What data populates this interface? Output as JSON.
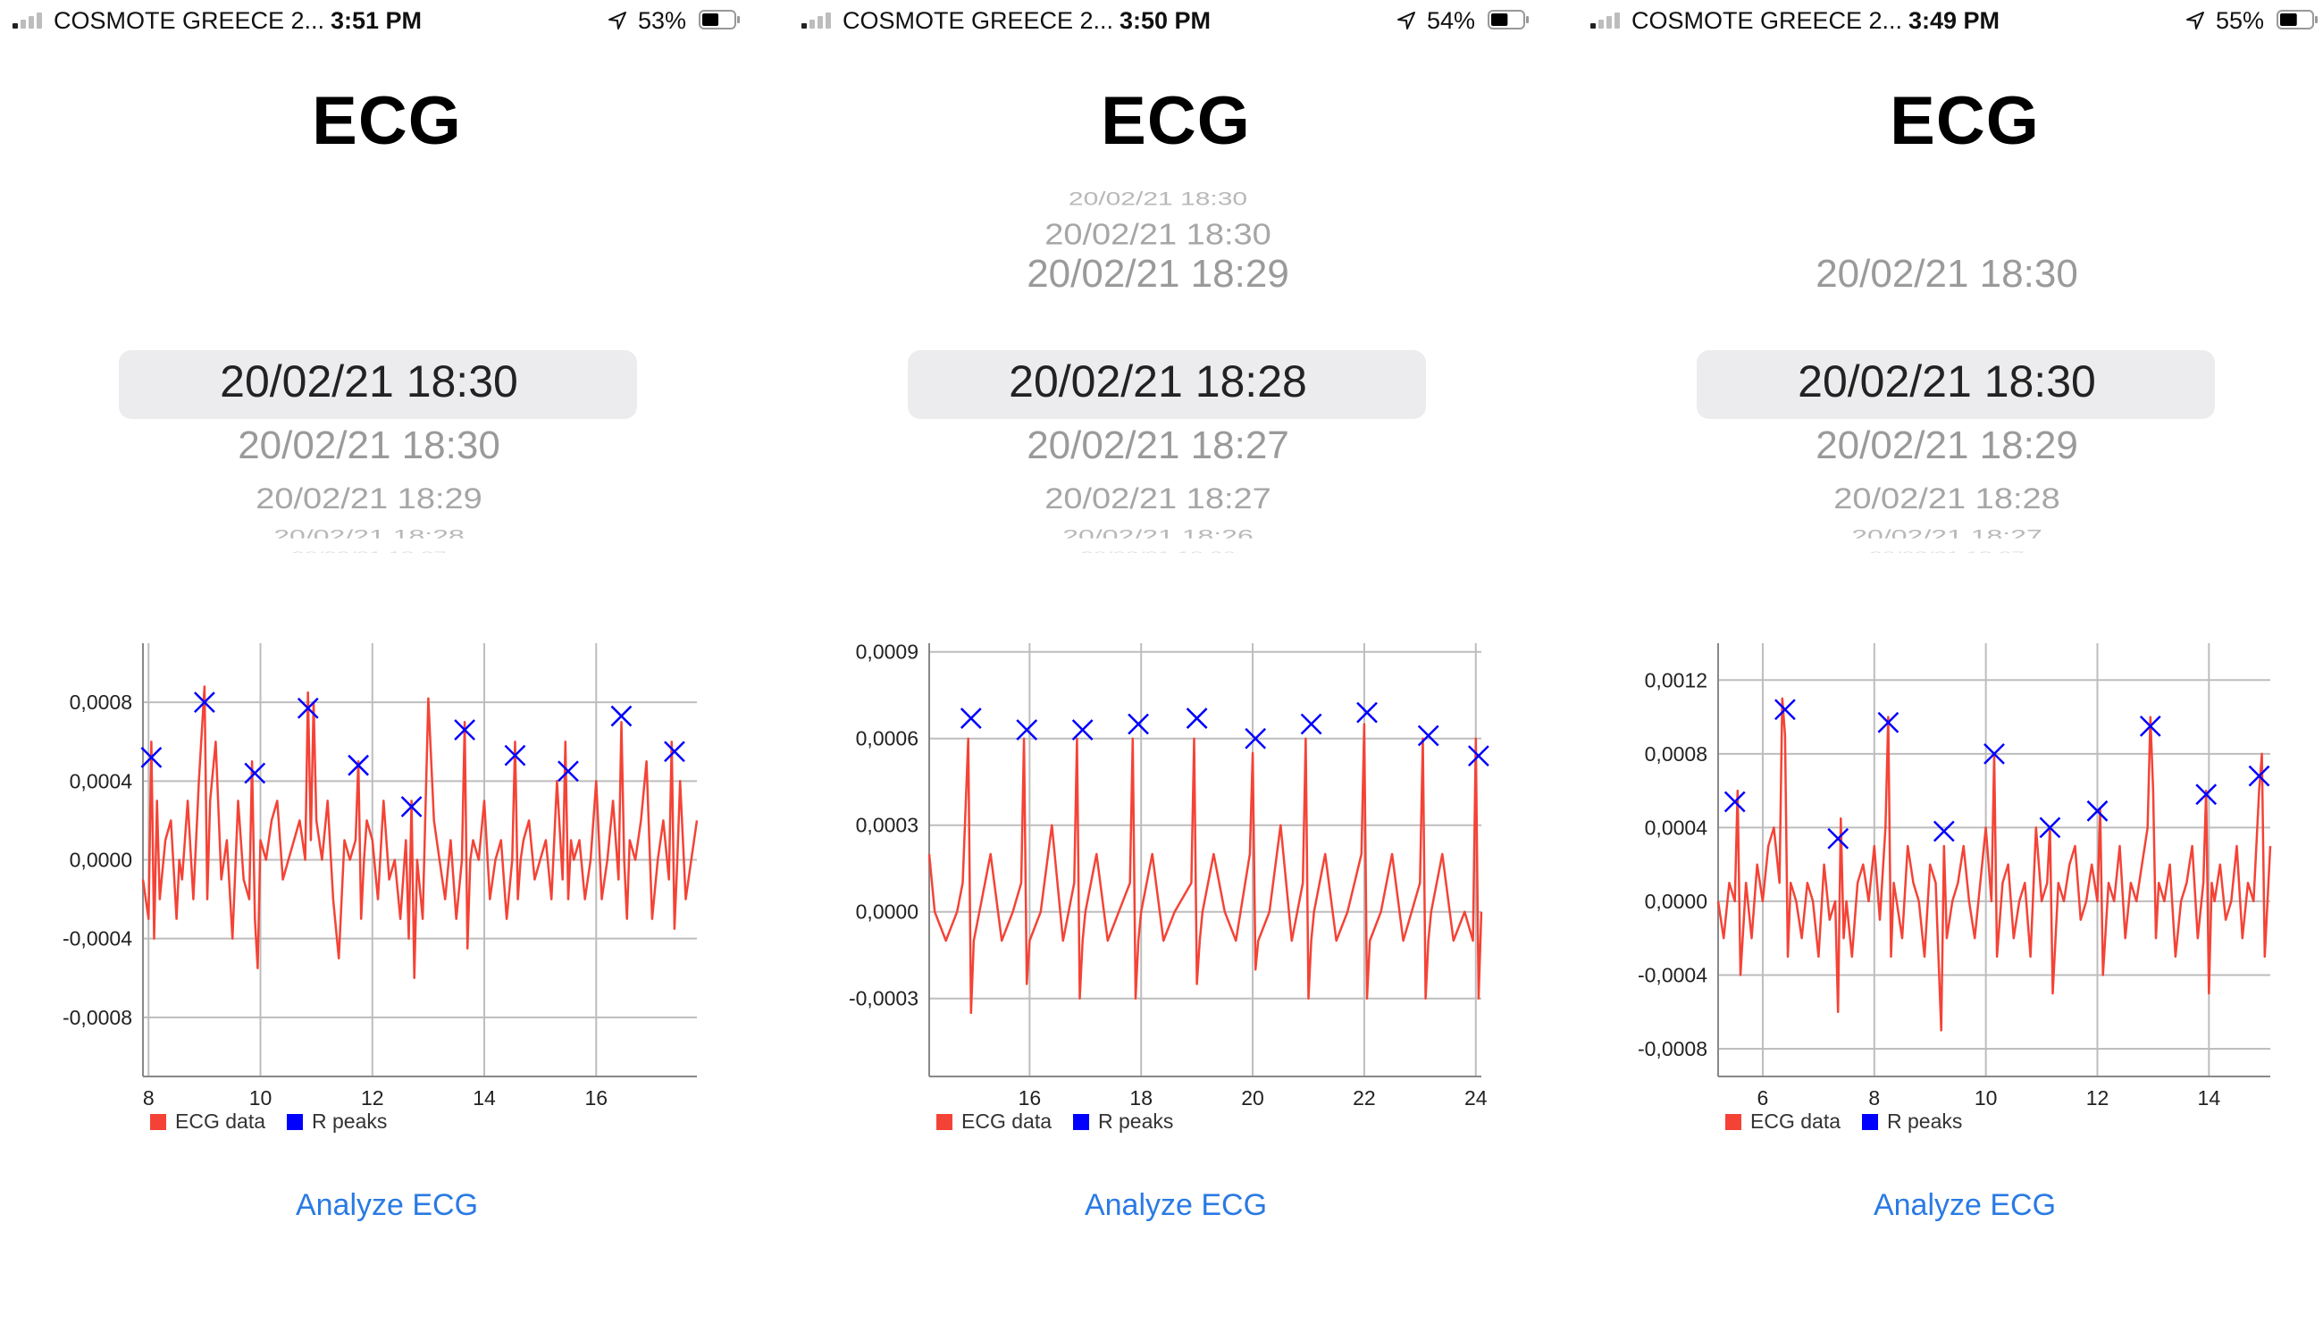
{
  "screens": [
    {
      "status": {
        "carrier": "COSMOTE GREECE 2...",
        "time": "3:51 PM",
        "battery": "53%",
        "battery_level": 0.53
      },
      "title": "ECG",
      "picker": {
        "above": [
          "",
          ""
        ],
        "selected": "20/02/21 18:30",
        "below": [
          "20/02/21 18:30",
          "20/02/21 18:29",
          "20/02/21 18:28",
          "20/02/21 18:27"
        ]
      },
      "analyze_label": "Analyze ECG",
      "chart_data": {
        "type": "line",
        "xlim": [
          7.9,
          17.8
        ],
        "ylim": [
          -0.0011,
          0.0011
        ],
        "x_ticks": [
          8,
          10,
          12,
          14,
          16
        ],
        "x_tick_labels": [
          "8",
          "10",
          "12",
          "14",
          "16"
        ],
        "y_ticks": [
          -0.0008,
          -0.0004,
          0.0,
          0.0004,
          0.0008
        ],
        "y_tick_labels": [
          "-0,0008",
          "-0,0004",
          "0,0000",
          "0,0004",
          "0,0008"
        ],
        "series": [
          {
            "name": "ECG data",
            "color": "#f44336",
            "style": "line",
            "x": [
              7.9,
              8.0,
              8.05,
              8.1,
              8.15,
              8.2,
              8.3,
              8.4,
              8.5,
              8.55,
              8.6,
              8.7,
              8.8,
              8.9,
              9.0,
              9.05,
              9.1,
              9.2,
              9.3,
              9.4,
              9.5,
              9.6,
              9.7,
              9.8,
              9.85,
              9.9,
              9.95,
              10.0,
              10.1,
              10.2,
              10.3,
              10.4,
              10.5,
              10.6,
              10.7,
              10.8,
              10.85,
              10.9,
              10.95,
              11.0,
              11.1,
              11.2,
              11.3,
              11.4,
              11.5,
              11.6,
              11.7,
              11.75,
              11.8,
              11.85,
              11.9,
              12.0,
              12.1,
              12.2,
              12.3,
              12.4,
              12.5,
              12.6,
              12.65,
              12.7,
              12.75,
              12.8,
              12.9,
              13.0,
              13.1,
              13.2,
              13.3,
              13.4,
              13.5,
              13.6,
              13.65,
              13.7,
              13.75,
              13.8,
              13.9,
              14.0,
              14.1,
              14.2,
              14.3,
              14.4,
              14.5,
              14.55,
              14.6,
              14.65,
              14.7,
              14.8,
              14.9,
              15.0,
              15.1,
              15.2,
              15.3,
              15.4,
              15.45,
              15.5,
              15.55,
              15.6,
              15.7,
              15.8,
              15.9,
              16.0,
              16.1,
              16.2,
              16.3,
              16.4,
              16.45,
              16.5,
              16.55,
              16.6,
              16.7,
              16.8,
              16.9,
              17.0,
              17.1,
              17.2,
              17.3,
              17.35,
              17.4,
              17.45,
              17.5,
              17.6,
              17.7,
              17.8
            ],
            "y": [
              -0.0001,
              -0.0003,
              0.0006,
              -0.0004,
              0.0003,
              -0.0002,
              0.0001,
              0.0002,
              -0.0003,
              0.0,
              -0.0001,
              0.0003,
              -0.0002,
              0.0004,
              0.00088,
              -0.0002,
              0.0003,
              0.0006,
              -0.0001,
              0.0001,
              -0.0004,
              0.0003,
              -0.0001,
              -0.0002,
              0.0005,
              -0.0003,
              -0.00055,
              0.0001,
              0.0,
              0.0002,
              0.0003,
              -0.0001,
              0.0,
              0.0001,
              0.0002,
              0.0,
              0.00085,
              0.0001,
              0.0008,
              0.0002,
              0.0,
              0.0003,
              -0.0002,
              -0.0005,
              0.0001,
              0.0,
              0.0001,
              0.0005,
              -0.0003,
              0.0,
              0.0002,
              0.0001,
              -0.0002,
              0.0003,
              -0.0001,
              0.0,
              -0.0003,
              0.0001,
              -0.0004,
              0.0003,
              -0.0006,
              0.0,
              -0.0003,
              0.00082,
              0.0002,
              0.0,
              -0.0002,
              0.0001,
              -0.0003,
              0.0,
              0.0007,
              -0.00045,
              0.0,
              0.0001,
              0.0,
              0.0003,
              -0.0002,
              0.0,
              0.0001,
              -0.0003,
              0.0,
              0.0006,
              -0.0002,
              0.0,
              0.0001,
              0.0002,
              -0.0001,
              0.0,
              0.0001,
              -0.0002,
              0.0004,
              -0.0001,
              0.0006,
              -0.0002,
              0.0001,
              0.0,
              0.0001,
              -0.0002,
              0.0,
              0.0004,
              -0.0002,
              0.0,
              0.0003,
              -0.0001,
              0.0007,
              0.0,
              -0.0003,
              0.0001,
              0.0,
              0.0002,
              0.0005,
              -0.0003,
              0.0,
              0.0002,
              -0.0001,
              0.0006,
              -0.00035,
              0.0,
              0.0004,
              -0.0002,
              0.0,
              0.0002
            ]
          },
          {
            "name": "R peaks",
            "color": "#0000ff",
            "style": "x",
            "x": [
              8.05,
              9.0,
              9.9,
              10.85,
              11.75,
              12.7,
              13.65,
              14.55,
              15.5,
              16.45,
              17.4
            ],
            "y": [
              0.00052,
              0.0008,
              0.00044,
              0.00077,
              0.00048,
              0.00027,
              0.00066,
              0.00053,
              0.00045,
              0.00073,
              0.00055
            ]
          }
        ]
      }
    },
    {
      "status": {
        "carrier": "COSMOTE GREECE 2...",
        "time": "3:50 PM",
        "battery": "54%",
        "battery_level": 0.54
      },
      "title": "ECG",
      "picker": {
        "above": [
          "20/02/21 18:30",
          "20/02/21 18:30",
          "20/02/21 18:29"
        ],
        "selected": "20/02/21 18:28",
        "below": [
          "20/02/21 18:27",
          "20/02/21 18:27",
          "20/02/21 18:26",
          "20/02/21 18:26"
        ]
      },
      "analyze_label": "Analyze ECG",
      "chart_data": {
        "type": "line",
        "xlim": [
          14.2,
          24.1
        ],
        "ylim": [
          -0.00057,
          0.00093
        ],
        "x_ticks": [
          16,
          18,
          20,
          22,
          24
        ],
        "x_tick_labels": [
          "16",
          "18",
          "20",
          "22",
          "24"
        ],
        "y_ticks": [
          -0.0003,
          0.0,
          0.0003,
          0.0006,
          0.0009
        ],
        "y_tick_labels": [
          "-0,0003",
          "0,0000",
          "0,0003",
          "0,0006",
          "0,0009"
        ],
        "series": [
          {
            "name": "ECG data",
            "color": "#f44336",
            "style": "line",
            "x": [
              14.2,
              14.3,
              14.5,
              14.7,
              14.8,
              14.9,
              14.95,
              15.0,
              15.1,
              15.3,
              15.5,
              15.7,
              15.85,
              15.9,
              15.95,
              16.0,
              16.2,
              16.4,
              16.6,
              16.8,
              16.85,
              16.9,
              16.95,
              17.0,
              17.2,
              17.4,
              17.6,
              17.8,
              17.85,
              17.9,
              17.95,
              18.0,
              18.2,
              18.4,
              18.6,
              18.9,
              18.95,
              19.0,
              19.05,
              19.1,
              19.3,
              19.5,
              19.7,
              19.95,
              20.0,
              20.05,
              20.1,
              20.3,
              20.5,
              20.7,
              20.9,
              20.95,
              21.0,
              21.05,
              21.1,
              21.3,
              21.5,
              21.7,
              21.95,
              22.0,
              22.05,
              22.1,
              22.3,
              22.5,
              22.7,
              23.0,
              23.05,
              23.1,
              23.15,
              23.2,
              23.4,
              23.6,
              23.8,
              23.95,
              24.0,
              24.05,
              24.1
            ],
            "y": [
              0.0002,
              0.0,
              -0.0001,
              0.0,
              0.0001,
              0.0006,
              -0.00035,
              -0.0001,
              0.0,
              0.0002,
              -0.0001,
              0.0,
              0.0001,
              0.0006,
              -0.00025,
              -0.0001,
              0.0,
              0.0003,
              -0.0001,
              0.0001,
              0.0006,
              -0.0003,
              -0.0001,
              0.0,
              0.0002,
              -0.0001,
              0.0,
              0.0001,
              0.0006,
              -0.0003,
              -0.0001,
              0.0,
              0.0002,
              -0.0001,
              0.0,
              0.0001,
              0.0006,
              -0.00025,
              -0.0001,
              0.0,
              0.0002,
              0.0,
              -0.0001,
              0.0002,
              0.00055,
              -0.0002,
              -0.0001,
              0.0,
              0.0003,
              -0.0001,
              0.0001,
              0.0006,
              -0.0003,
              -0.0001,
              0.0,
              0.0002,
              -0.0001,
              0.0,
              0.0002,
              0.00065,
              -0.0003,
              -0.0001,
              0.0,
              0.0002,
              -0.0001,
              0.0001,
              0.0006,
              -0.0003,
              -0.0001,
              0.0,
              0.0002,
              -0.0001,
              0.0,
              -0.0001,
              0.0006,
              -0.0003,
              0.0
            ]
          },
          {
            "name": "R peaks",
            "color": "#0000ff",
            "style": "x",
            "x": [
              14.95,
              15.95,
              16.95,
              17.95,
              19.0,
              20.05,
              21.05,
              22.05,
              23.15,
              24.05
            ],
            "y": [
              0.00067,
              0.00063,
              0.00063,
              0.00065,
              0.00067,
              0.0006,
              0.00065,
              0.00069,
              0.00061,
              0.00054
            ]
          }
        ]
      }
    },
    {
      "status": {
        "carrier": "COSMOTE GREECE 2...",
        "time": "3:49 PM",
        "battery": "55%",
        "battery_level": 0.55
      },
      "title": "ECG",
      "picker": {
        "above": [
          "",
          "20/02/21 18:30"
        ],
        "selected": "20/02/21 18:30",
        "below": [
          "20/02/21 18:29",
          "20/02/21 18:28",
          "20/02/21 18:27",
          "20/02/21 18:27"
        ]
      },
      "analyze_label": "Analyze ECG",
      "chart_data": {
        "type": "line",
        "xlim": [
          5.2,
          15.1
        ],
        "ylim": [
          -0.00095,
          0.0014
        ],
        "x_ticks": [
          6,
          8,
          10,
          12,
          14
        ],
        "x_tick_labels": [
          "6",
          "8",
          "10",
          "12",
          "14"
        ],
        "y_ticks": [
          -0.0008,
          -0.0004,
          0.0,
          0.0004,
          0.0008,
          0.0012
        ],
        "y_tick_labels": [
          "-0,0008",
          "-0,0004",
          "0,0000",
          "0,0004",
          "0,0008",
          "0,0012"
        ],
        "series": [
          {
            "name": "ECG data",
            "color": "#f44336",
            "style": "line",
            "x": [
              5.2,
              5.3,
              5.4,
              5.5,
              5.55,
              5.6,
              5.7,
              5.8,
              5.9,
              6.0,
              6.1,
              6.2,
              6.3,
              6.35,
              6.4,
              6.45,
              6.5,
              6.6,
              6.7,
              6.8,
              6.9,
              7.0,
              7.1,
              7.2,
              7.3,
              7.35,
              7.4,
              7.45,
              7.5,
              7.6,
              7.7,
              7.8,
              7.9,
              8.0,
              8.1,
              8.2,
              8.25,
              8.3,
              8.35,
              8.4,
              8.5,
              8.6,
              8.7,
              8.8,
              8.9,
              9.0,
              9.1,
              9.2,
              9.25,
              9.3,
              9.4,
              9.5,
              9.6,
              9.7,
              9.8,
              9.9,
              10.0,
              10.1,
              10.15,
              10.2,
              10.3,
              10.4,
              10.5,
              10.6,
              10.7,
              10.8,
              10.9,
              11.0,
              11.1,
              11.15,
              11.2,
              11.3,
              11.4,
              11.5,
              11.6,
              11.7,
              11.8,
              11.9,
              12.0,
              12.05,
              12.1,
              12.2,
              12.3,
              12.4,
              12.5,
              12.6,
              12.7,
              12.8,
              12.9,
              12.95,
              13.0,
              13.05,
              13.1,
              13.2,
              13.3,
              13.4,
              13.5,
              13.6,
              13.7,
              13.8,
              13.9,
              13.95,
              14.0,
              14.05,
              14.1,
              14.2,
              14.3,
              14.4,
              14.5,
              14.6,
              14.7,
              14.8,
              14.9,
              14.95,
              15.0,
              15.05,
              15.1
            ],
            "y": [
              0.0,
              -0.0002,
              0.0001,
              0.0,
              0.0006,
              -0.0004,
              0.0001,
              -0.0002,
              0.0002,
              0.0,
              0.0003,
              0.0004,
              0.0001,
              0.0011,
              0.0009,
              -0.0003,
              0.0001,
              0.0,
              -0.0002,
              0.0001,
              0.0,
              -0.0003,
              0.0002,
              -0.0001,
              0.0,
              -0.0006,
              0.00045,
              -0.0002,
              0.0,
              -0.0003,
              0.0001,
              0.0002,
              0.0,
              0.0003,
              -0.0001,
              0.0004,
              0.001,
              -0.0003,
              0.0001,
              0.0,
              -0.0002,
              0.0003,
              0.0001,
              0.0,
              -0.0003,
              0.0002,
              0.0001,
              -0.0007,
              0.0003,
              -0.0002,
              0.0,
              0.0001,
              0.0003,
              0.0,
              -0.0002,
              0.0001,
              0.0004,
              0.0,
              0.0008,
              -0.0003,
              0.0001,
              0.0002,
              -0.0002,
              0.0,
              0.0001,
              -0.0003,
              0.0004,
              0.0,
              0.0001,
              0.0004,
              -0.0005,
              0.0001,
              0.0,
              0.0002,
              0.0003,
              -0.0001,
              0.0,
              0.0002,
              0.0,
              0.0005,
              -0.0004,
              0.0001,
              0.0,
              0.0003,
              -0.0002,
              0.0001,
              0.0,
              0.0002,
              0.0004,
              0.001,
              0.0006,
              -0.0002,
              0.0001,
              0.0,
              0.0002,
              -0.0003,
              0.0,
              0.0001,
              0.0003,
              -0.0002,
              0.0001,
              0.0006,
              -0.0005,
              0.0001,
              0.0,
              0.0002,
              -0.0001,
              0.0,
              0.0003,
              -0.0002,
              0.0001,
              0.0,
              0.0006,
              0.0008,
              -0.0003,
              0.0,
              0.0003
            ]
          },
          {
            "name": "R peaks",
            "color": "#0000ff",
            "style": "x",
            "x": [
              5.5,
              6.4,
              7.35,
              8.25,
              9.25,
              10.15,
              11.15,
              12.0,
              12.95,
              13.95,
              14.9
            ],
            "y": [
              0.00054,
              0.00104,
              0.00034,
              0.00097,
              0.00038,
              0.0008,
              0.0004,
              0.00049,
              0.00095,
              0.00058,
              0.00068
            ]
          }
        ]
      }
    }
  ]
}
